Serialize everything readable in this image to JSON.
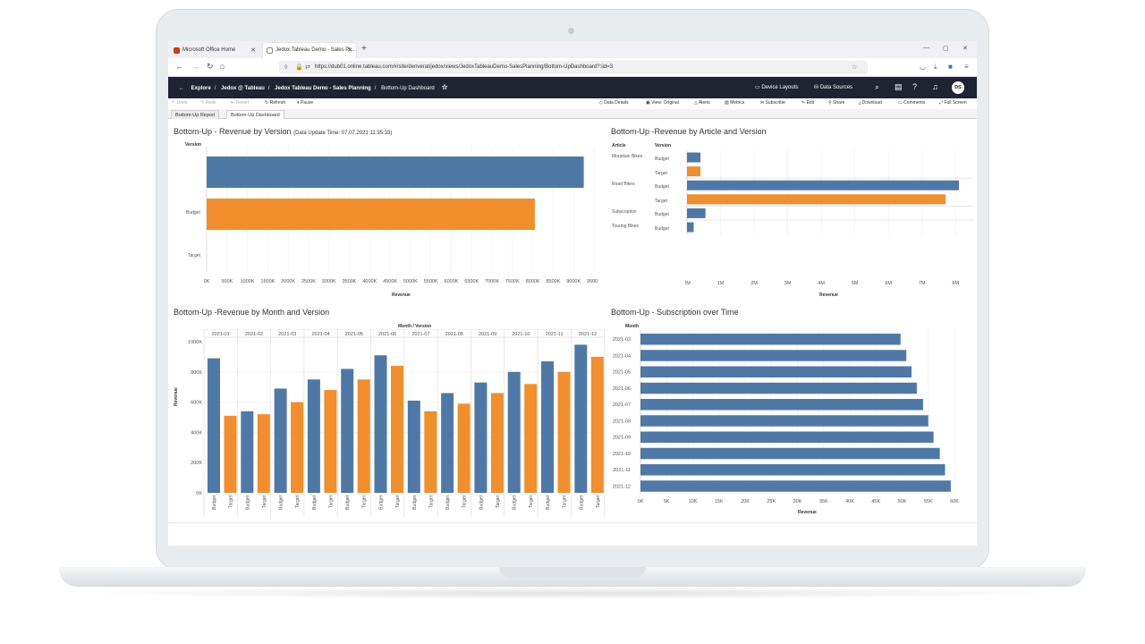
{
  "browser": {
    "tabs": [
      {
        "label": "Microsoft Office Home",
        "close": "✕"
      },
      {
        "label": "Jedox Tableau Demo - Sales Pl...",
        "close": "✕"
      }
    ],
    "new_tab": "+",
    "url": "https://dub01.online.tableau.com/#/site/denverat/jedox/views/JedoxTableauDemo-SalesPlanning/Bottom-UpDashboard?:iid=3"
  },
  "header": {
    "breadcrumb": [
      "Explore",
      "Jedox @ Tableau",
      "Jedox Tableau Demo - Sales Planning",
      "Bottom-Up Dashboard"
    ],
    "device_layouts": "Device Layouts",
    "data_sources": "Data Sources",
    "avatar": "DS"
  },
  "toolbar": {
    "undo": "Undo",
    "redo": "Redo",
    "revert": "Revert",
    "refresh": "Refresh",
    "pause": "Pause",
    "data_details": "Data Details",
    "view": "View: Original",
    "alerts": "Alerts",
    "metrics": "Metrics",
    "subscribe": "Subscribe",
    "edit": "Edit",
    "share": "Share",
    "download": "Download",
    "comments": "Comments",
    "full_screen": "Full Screen"
  },
  "sheet_tabs": [
    "Bottom-Up Report",
    "Bottom-Up Dashboard"
  ],
  "colors": {
    "budget": "#4e79a7",
    "target": "#f28e2b",
    "header_bg": "#1f2332"
  },
  "chart_data": [
    {
      "type": "bar",
      "title": "Bottom-Up - Revenue by Version",
      "subtitle": "(Data Update Time: 07.07.2021 11:35:33)",
      "orientation": "horizontal",
      "row_header": "Version",
      "categories": [
        "Budget",
        "Target"
      ],
      "values": [
        9250000,
        8050000
      ],
      "xlabel": "Revenue",
      "xlim": [
        0,
        9500000
      ],
      "xticks": [
        "0K",
        "500K",
        "1000K",
        "1500K",
        "2000K",
        "2500K",
        "3000K",
        "3500K",
        "4000K",
        "4500K",
        "5000K",
        "5500K",
        "6000K",
        "6500K",
        "7000K",
        "7500K",
        "8000K",
        "8500K",
        "9000K",
        "9500K"
      ],
      "grid": true
    },
    {
      "type": "bar",
      "title": "Bottom-Up -Revenue by Article and Version",
      "orientation": "horizontal",
      "row_headers": [
        "Article",
        "Version"
      ],
      "rows": [
        {
          "article": "Mountain Bikes",
          "version": "Budget",
          "value": 400000
        },
        {
          "article": "",
          "version": "Target",
          "value": 400000
        },
        {
          "article": "Road Bikes",
          "version": "Budget",
          "value": 8100000
        },
        {
          "article": "",
          "version": "Target",
          "value": 7700000
        },
        {
          "article": "Subscription",
          "version": "Budget",
          "value": 550000
        },
        {
          "article": "Touring Bikes",
          "version": "Budget",
          "value": 200000
        }
      ],
      "xlabel": "Revenue",
      "xlim": [
        0,
        8500000
      ],
      "xticks": [
        "0M",
        "1M",
        "2M",
        "3M",
        "4M",
        "5M",
        "6M",
        "7M",
        "8M"
      ]
    },
    {
      "type": "bar",
      "title": "Bottom-Up -Revenue by Month and Version",
      "header": "Month / Version",
      "ylabel": "Revenue",
      "ylim": [
        0,
        1000000
      ],
      "yticks": [
        "0K",
        "200K",
        "400K",
        "600K",
        "800K",
        "1000K"
      ],
      "categories": [
        "2021-01",
        "2021-02",
        "2021-03",
        "2021-04",
        "2021-05",
        "2021-06",
        "2021-07",
        "2021-08",
        "2021-09",
        "2021-10",
        "2021-11",
        "2021-12"
      ],
      "version_labels": [
        "Budget",
        "Target"
      ],
      "series": [
        {
          "name": "Budget",
          "values": [
            890000,
            540000,
            690000,
            750000,
            820000,
            910000,
            610000,
            660000,
            730000,
            800000,
            870000,
            980000
          ]
        },
        {
          "name": "Target",
          "values": [
            510000,
            520000,
            600000,
            680000,
            750000,
            840000,
            540000,
            590000,
            660000,
            720000,
            800000,
            900000
          ]
        }
      ]
    },
    {
      "type": "bar",
      "title": "Bottom-Up - Subscription over Time",
      "orientation": "horizontal",
      "row_header": "Month",
      "categories": [
        "2021-03",
        "2021-04",
        "2021-05",
        "2021-06",
        "2021-07",
        "2021-08",
        "2021-09",
        "2021-10",
        "2021-11",
        "2021-12"
      ],
      "values": [
        49700,
        50800,
        51800,
        52800,
        54000,
        55000,
        56000,
        57200,
        58200,
        59300
      ],
      "xlabel": "Revenue",
      "xlim": [
        0,
        60000
      ],
      "xticks": [
        "0K",
        "5K",
        "10K",
        "15K",
        "20K",
        "25K",
        "30K",
        "35K",
        "40K",
        "45K",
        "50K",
        "55K",
        "60K"
      ]
    }
  ]
}
